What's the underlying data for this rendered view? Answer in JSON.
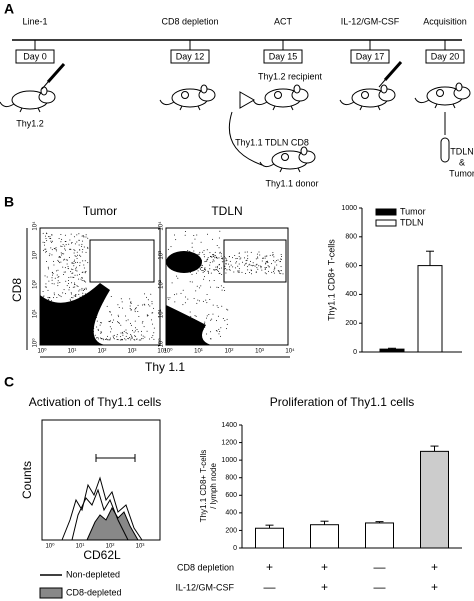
{
  "panels": {
    "a": "A",
    "b": "B",
    "c": "C"
  },
  "timeline": {
    "events": [
      {
        "label": "Line-1",
        "day": "Day 0"
      },
      {
        "label": "CD8 depletion",
        "day": "Day 12"
      },
      {
        "label": "ACT",
        "day": "Day 15"
      },
      {
        "label": "IL-12/GM-CSF",
        "day": "Day 17"
      },
      {
        "label": "Acquisition",
        "day": "Day 20"
      }
    ],
    "host": "Thy1.2",
    "recipient": "Thy1.2 recipient",
    "transfer": "Thy1.1 TDLN CD8",
    "donor": "Thy1.1 donor",
    "harvest": [
      "TDLN",
      "&",
      "Tumor"
    ]
  },
  "flow": {
    "titles": [
      "Tumor",
      "TDLN"
    ],
    "y_label": "CD8",
    "x_label": "Thy 1.1",
    "ticks": [
      "10⁰",
      "10¹",
      "10²",
      "10³",
      "10⁴"
    ]
  },
  "histogram": {
    "title": "Activation of Thy1.1 cells",
    "y_label": "Counts",
    "x_label": "CD62L",
    "ticks": [
      "10⁰",
      "10¹",
      "10²",
      "10³"
    ],
    "legend": [
      "Non-depleted",
      "CD8-depleted"
    ]
  },
  "chart_data": [
    {
      "type": "bar",
      "y_label": "Thy1.1 CD8+ T-cells",
      "categories": [
        null
      ],
      "series": [
        {
          "name": "Tumor",
          "color": "#000000",
          "values": [
            20
          ],
          "errors": [
            6
          ]
        },
        {
          "name": "TDLN",
          "color": "#ffffff",
          "values": [
            600
          ],
          "errors": [
            100
          ]
        }
      ],
      "ylim": [
        0,
        1000
      ],
      "yticks": [
        0,
        200,
        400,
        600,
        800,
        1000
      ],
      "legend": "top-right"
    },
    {
      "type": "bar",
      "title": "Proliferation of Thy1.1 cells",
      "y_label": [
        "Thy1.1 CD8+ T-cells",
        "/ lymph node"
      ],
      "categories": [
        null,
        null,
        null,
        null
      ],
      "values": [
        225,
        265,
        285,
        1100
      ],
      "errors": [
        35,
        40,
        15,
        60
      ],
      "colors": [
        "#ffffff",
        "#ffffff",
        "#ffffff",
        "#cccccc"
      ],
      "ylim": [
        0,
        1400
      ],
      "yticks": [
        0,
        200,
        400,
        600,
        800,
        1000,
        1200,
        1400
      ],
      "treatments": [
        {
          "label": "CD8 depletion",
          "values": [
            "+",
            "+",
            "—",
            "+"
          ]
        },
        {
          "label": "IL-12/GM-CSF",
          "values": [
            "—",
            "+",
            "—",
            "+"
          ]
        }
      ]
    }
  ]
}
